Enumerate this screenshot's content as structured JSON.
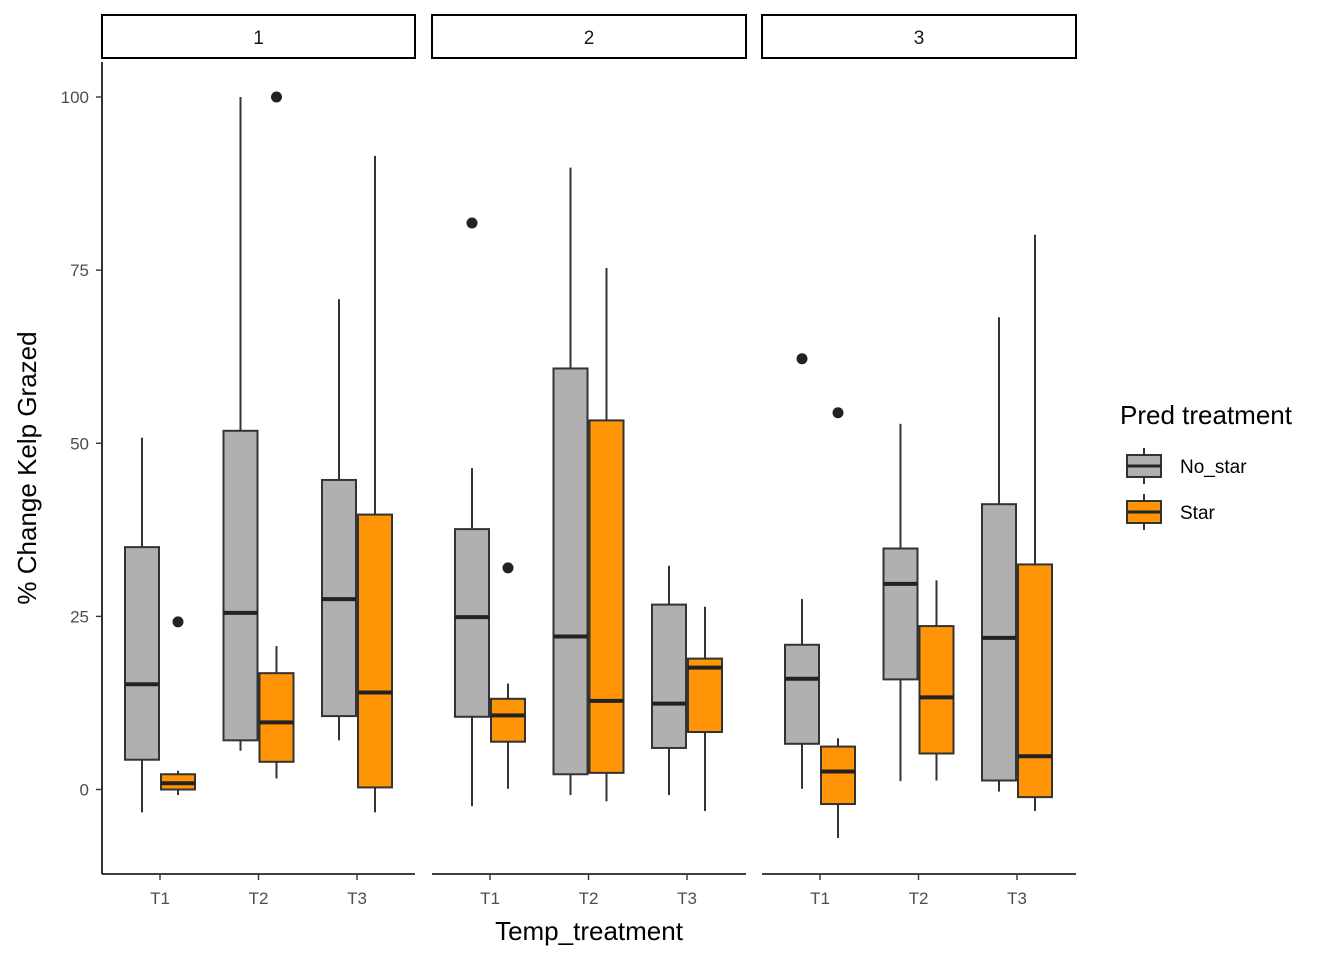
{
  "chart_data": {
    "type": "boxplot",
    "title": "",
    "xlabel": "Temp_treatment",
    "ylabel": "% Change Kelp Grazed",
    "ylim": [
      -12,
      106
    ],
    "yticks": [
      0,
      25,
      50,
      75,
      100
    ],
    "categories": [
      "T1",
      "T2",
      "T3"
    ],
    "facets": [
      "1",
      "2",
      "3"
    ],
    "legend": {
      "title": "Pred treatment",
      "placement": "right",
      "entries": [
        {
          "name": "No_star",
          "color": "#b0b0b0"
        },
        {
          "name": "Star",
          "color": "#ff9406"
        }
      ]
    },
    "panels": [
      {
        "facet": "1",
        "boxes": [
          {
            "category": "T1",
            "group": "No_star",
            "min": -3.3,
            "q1": 4.3,
            "median": 15.2,
            "q3": 35.0,
            "max": 50.8,
            "outliers": []
          },
          {
            "category": "T1",
            "group": "Star",
            "min": -0.8,
            "q1": 0.0,
            "median": 0.9,
            "q3": 2.2,
            "max": 2.7,
            "outliers": [
              24.2
            ]
          },
          {
            "category": "T2",
            "group": "No_star",
            "min": 5.6,
            "q1": 7.1,
            "median": 25.5,
            "q3": 51.8,
            "max": 100.0,
            "outliers": []
          },
          {
            "category": "T2",
            "group": "Star",
            "min": 1.6,
            "q1": 4.0,
            "median": 9.7,
            "q3": 16.8,
            "max": 20.7,
            "outliers": [
              100.0
            ]
          },
          {
            "category": "T3",
            "group": "No_star",
            "min": 7.1,
            "q1": 10.6,
            "median": 27.5,
            "q3": 44.7,
            "max": 70.8,
            "outliers": []
          },
          {
            "category": "T3",
            "group": "Star",
            "min": -3.3,
            "q1": 0.3,
            "median": 14.0,
            "q3": 39.7,
            "max": 91.5,
            "outliers": []
          }
        ]
      },
      {
        "facet": "2",
        "boxes": [
          {
            "category": "T1",
            "group": "No_star",
            "min": -2.4,
            "q1": 10.5,
            "median": 24.9,
            "q3": 37.6,
            "max": 46.4,
            "outliers": [
              81.8
            ]
          },
          {
            "category": "T1",
            "group": "Star",
            "min": 0.1,
            "q1": 6.9,
            "median": 10.7,
            "q3": 13.1,
            "max": 15.3,
            "outliers": [
              32.0
            ]
          },
          {
            "category": "T2",
            "group": "No_star",
            "min": -0.8,
            "q1": 2.2,
            "median": 22.1,
            "q3": 60.8,
            "max": 89.8,
            "outliers": []
          },
          {
            "category": "T2",
            "group": "Star",
            "min": -1.7,
            "q1": 2.4,
            "median": 12.8,
            "q3": 53.3,
            "max": 75.3,
            "outliers": []
          },
          {
            "category": "T3",
            "group": "No_star",
            "min": -0.8,
            "q1": 6.0,
            "median": 12.4,
            "q3": 26.7,
            "max": 32.3,
            "outliers": []
          },
          {
            "category": "T3",
            "group": "Star",
            "min": -3.1,
            "q1": 8.3,
            "median": 17.6,
            "q3": 18.9,
            "max": 26.4,
            "outliers": []
          }
        ]
      },
      {
        "facet": "3",
        "boxes": [
          {
            "category": "T1",
            "group": "No_star",
            "min": 0.1,
            "q1": 6.6,
            "median": 16.0,
            "q3": 20.9,
            "max": 27.5,
            "outliers": [
              62.2
            ]
          },
          {
            "category": "T1",
            "group": "Star",
            "min": -7.0,
            "q1": -2.1,
            "median": 2.6,
            "q3": 6.2,
            "max": 7.4,
            "outliers": [
              54.4
            ]
          },
          {
            "category": "T2",
            "group": "No_star",
            "min": 1.2,
            "q1": 15.9,
            "median": 29.7,
            "q3": 34.8,
            "max": 52.8,
            "outliers": []
          },
          {
            "category": "T2",
            "group": "Star",
            "min": 1.3,
            "q1": 5.2,
            "median": 13.3,
            "q3": 23.6,
            "max": 30.2,
            "outliers": []
          },
          {
            "category": "T3",
            "group": "No_star",
            "min": -0.3,
            "q1": 1.3,
            "median": 21.9,
            "q3": 41.2,
            "max": 68.2,
            "outliers": []
          },
          {
            "category": "T3",
            "group": "Star",
            "min": -3.1,
            "q1": -1.1,
            "median": 4.8,
            "q3": 32.5,
            "max": 80.1,
            "outliers": []
          }
        ]
      }
    ]
  }
}
